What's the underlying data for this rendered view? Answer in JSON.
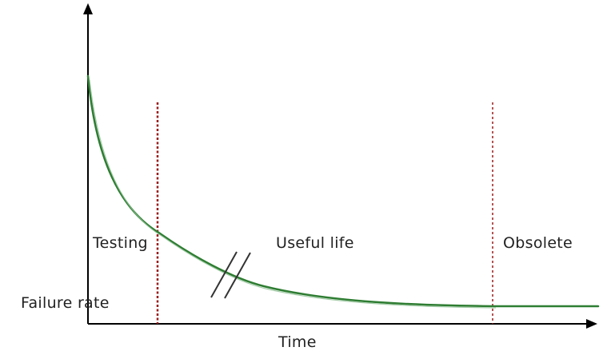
{
  "chart_data": {
    "type": "line",
    "title": "",
    "xlabel": "Time",
    "ylabel": "Failure rate",
    "grid": false,
    "regions": [
      {
        "label": "Testing"
      },
      {
        "label": "Useful life"
      },
      {
        "label": "Obsolete"
      }
    ],
    "annotations": [
      "axis break marker on curve"
    ],
    "series": [
      {
        "color": "#2e7d32",
        "shape": "decreasing curve that flattens out"
      }
    ],
    "boundary_line_color": "#9b1c1c"
  }
}
